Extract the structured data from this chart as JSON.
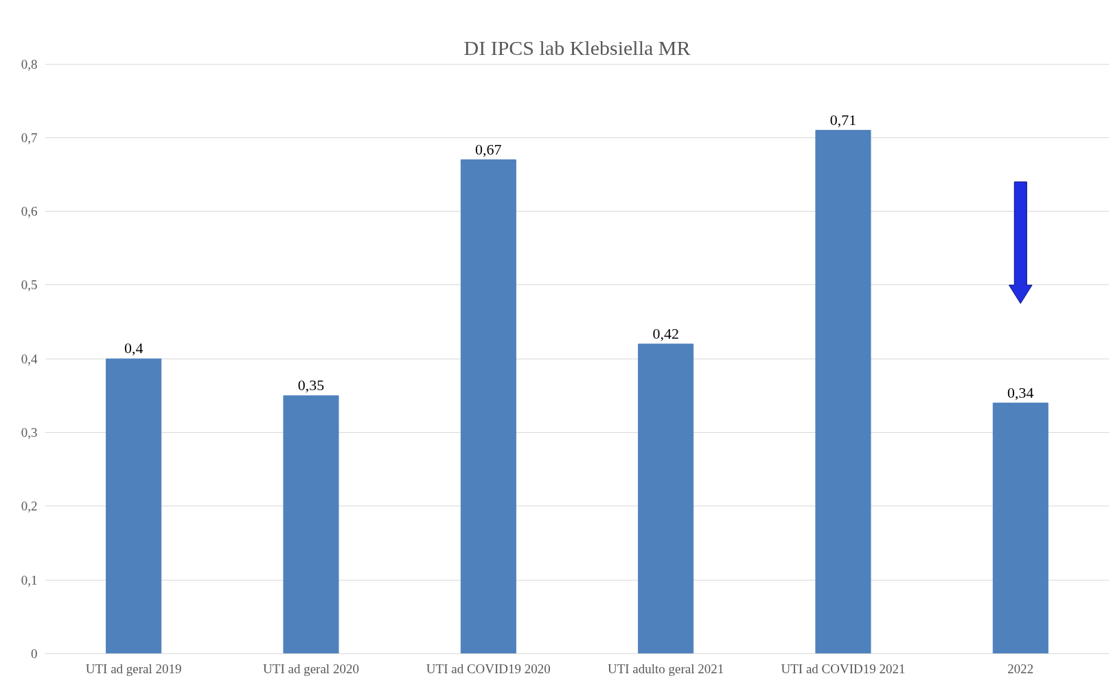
{
  "chart_data": {
    "type": "bar",
    "title": "DI IPCS lab Klebsiella MR",
    "categories": [
      "UTI ad geral 2019",
      "UTI ad geral 2020",
      "UTI ad COVID19 2020",
      "UTI adulto geral 2021",
      "UTI ad COVID19 2021",
      "2022"
    ],
    "values": [
      0.4,
      0.35,
      0.67,
      0.42,
      0.71,
      0.34
    ],
    "value_labels": [
      "0,4",
      "0,35",
      "0,67",
      "0,42",
      "0,71",
      "0,34"
    ],
    "color": "#4f81bd",
    "ylim": [
      0,
      0.8
    ],
    "yticks": [
      {
        "value": 0,
        "label": "0"
      },
      {
        "value": 0.1,
        "label": "0,1"
      },
      {
        "value": 0.2,
        "label": "0,2"
      },
      {
        "value": 0.3,
        "label": "0,3"
      },
      {
        "value": 0.4,
        "label": "0,4"
      },
      {
        "value": 0.5,
        "label": "0,5"
      },
      {
        "value": 0.6,
        "label": "0,6"
      },
      {
        "value": 0.7,
        "label": "0,7"
      },
      {
        "value": 0.8,
        "label": "0,8"
      }
    ],
    "grid": "y"
  }
}
